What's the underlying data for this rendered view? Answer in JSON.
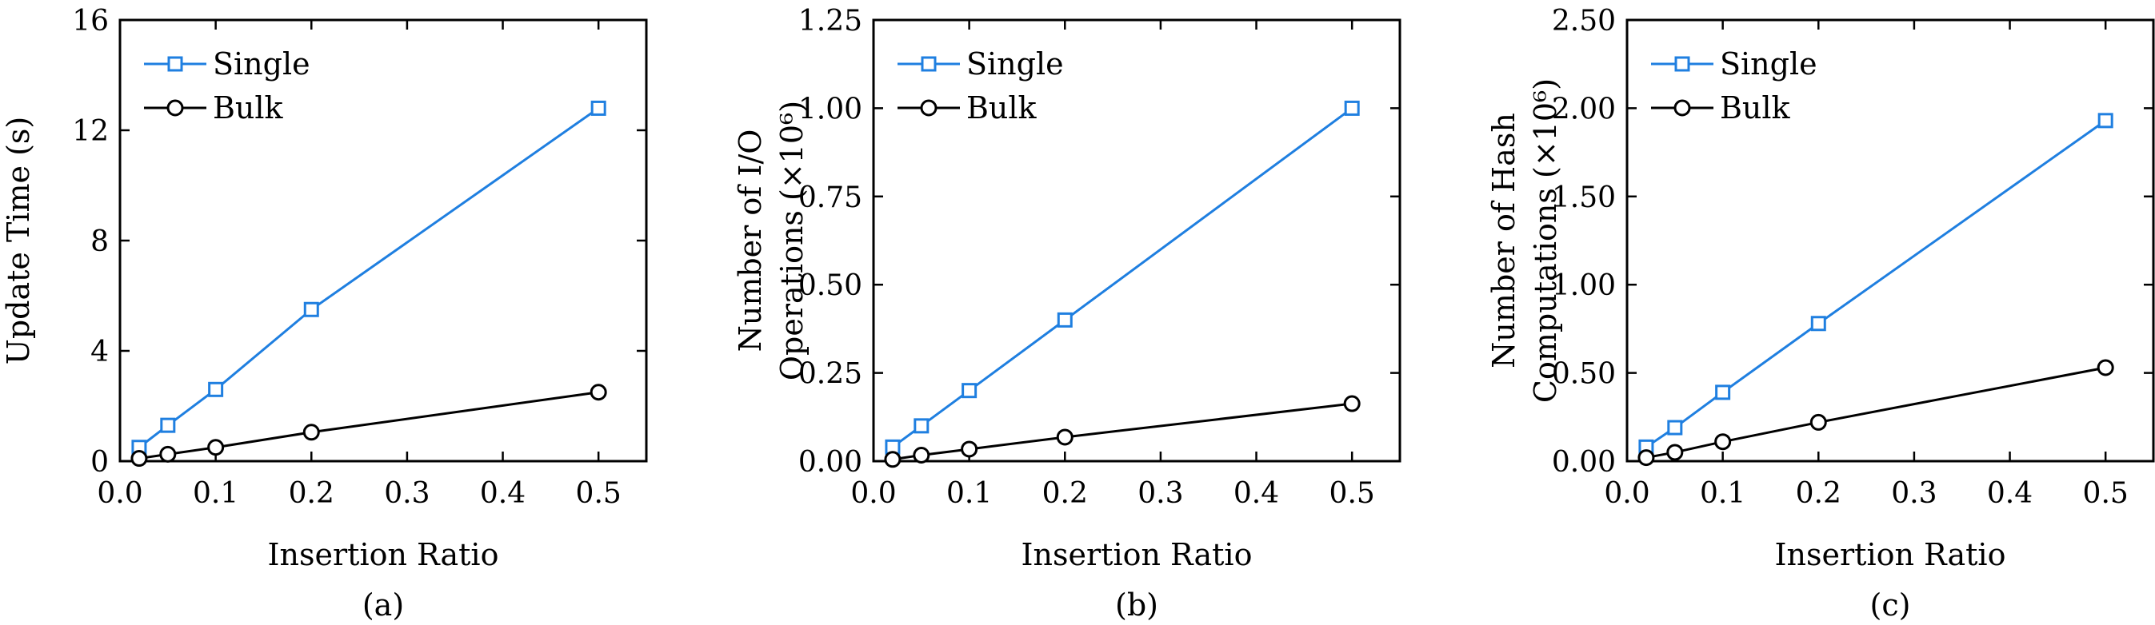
{
  "colors": {
    "single": "#1f7fe0",
    "bulk": "#000000"
  },
  "chart_data": [
    {
      "type": "line",
      "caption": "(a)",
      "xlabel": "Insertion Ratio",
      "ylabel_lines": [
        "Update Time (s)"
      ],
      "xlim": [
        0,
        0.55
      ],
      "ylim": [
        0,
        16
      ],
      "xticks": [
        "0.0",
        "0.1",
        "0.2",
        "0.3",
        "0.4",
        "0.5"
      ],
      "yticks": [
        "0",
        "4",
        "8",
        "12",
        "16"
      ],
      "legend_position": "top-left",
      "x": [
        0.02,
        0.05,
        0.1,
        0.2,
        0.5
      ],
      "series": [
        {
          "name": "Single",
          "marker": "square",
          "values": [
            0.5,
            1.3,
            2.6,
            5.5,
            12.8
          ]
        },
        {
          "name": "Bulk",
          "marker": "circle",
          "values": [
            0.1,
            0.25,
            0.5,
            1.05,
            2.5
          ]
        }
      ]
    },
    {
      "type": "line",
      "caption": "(b)",
      "xlabel": "Insertion Ratio",
      "ylabel_lines": [
        "Number of I/O",
        "Operations (×10⁶)"
      ],
      "xlim": [
        0,
        0.55
      ],
      "ylim": [
        0,
        1.25
      ],
      "xticks": [
        "0.0",
        "0.1",
        "0.2",
        "0.3",
        "0.4",
        "0.5"
      ],
      "yticks": [
        "0.00",
        "0.25",
        "0.50",
        "0.75",
        "1.00",
        "1.25"
      ],
      "legend_position": "top-left",
      "x": [
        0.02,
        0.05,
        0.1,
        0.2,
        0.5
      ],
      "series": [
        {
          "name": "Single",
          "marker": "square",
          "values": [
            0.04,
            0.1,
            0.2,
            0.4,
            1.0
          ]
        },
        {
          "name": "Bulk",
          "marker": "circle",
          "values": [
            0.005,
            0.017,
            0.034,
            0.068,
            0.163
          ]
        }
      ]
    },
    {
      "type": "line",
      "caption": "(c)",
      "xlabel": "Insertion Ratio",
      "ylabel_lines": [
        "Number of Hash",
        "Computations (×10⁶)"
      ],
      "xlim": [
        0,
        0.55
      ],
      "ylim": [
        0,
        2.5
      ],
      "xticks": [
        "0.0",
        "0.1",
        "0.2",
        "0.3",
        "0.4",
        "0.5"
      ],
      "yticks": [
        "0.00",
        "0.50",
        "1.00",
        "1.50",
        "2.00",
        "2.50"
      ],
      "legend_position": "top-left",
      "x": [
        0.02,
        0.05,
        0.1,
        0.2,
        0.5
      ],
      "series": [
        {
          "name": "Single",
          "marker": "square",
          "values": [
            0.08,
            0.19,
            0.39,
            0.78,
            1.93
          ]
        },
        {
          "name": "Bulk",
          "marker": "circle",
          "values": [
            0.02,
            0.05,
            0.11,
            0.22,
            0.53
          ]
        }
      ]
    }
  ]
}
